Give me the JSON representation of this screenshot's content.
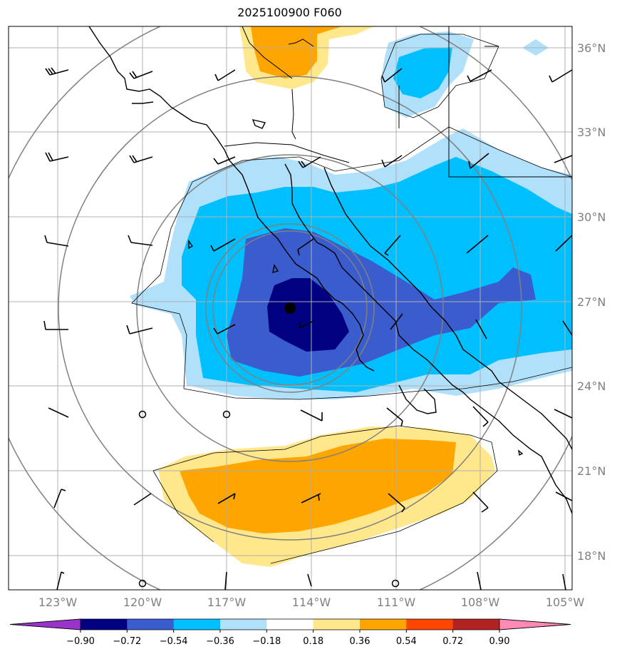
{
  "title": "2025100900 F060",
  "lat_labels": [
    "36°N",
    "33°N",
    "30°N",
    "27°N",
    "24°N",
    "21°N",
    "18°N"
  ],
  "lon_labels": [
    "123°W",
    "120°W",
    "117°W",
    "114°W",
    "111°W",
    "108°W",
    "105°W"
  ],
  "colorbar": {
    "ticks": [
      "−0.90",
      "−0.72",
      "−0.54",
      "−0.36",
      "−0.18",
      "0.18",
      "0.36",
      "0.54",
      "0.72",
      "0.90"
    ],
    "colors": [
      "#9933cc",
      "#000080",
      "#3a5ccc",
      "#00bfff",
      "#b0e0fa",
      "#ffffff",
      "#ffe88c",
      "#ffa500",
      "#ff4500",
      "#b22222",
      "#ff88b4"
    ]
  },
  "fill_colors": {
    "deep_blue": "#000080",
    "royal_blue": "#3a5ccc",
    "sky_blue": "#00bfff",
    "light_blue": "#b0e0fa",
    "light_yellow": "#ffe88c",
    "orange": "#ffa500"
  },
  "storm_center": {
    "lon": -114.7,
    "lat": 26.8
  }
}
